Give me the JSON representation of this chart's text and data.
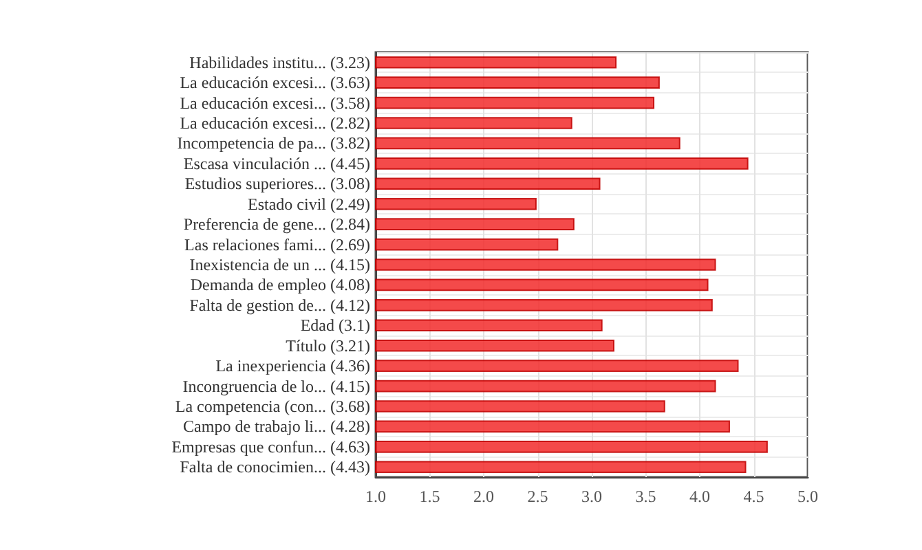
{
  "chart_data": {
    "type": "bar",
    "orientation": "horizontal",
    "categories": [
      "Habilidades institu... (3.23)",
      "La educación excesi... (3.63)",
      "La educación excesi... (3.58)",
      "La educación excesi... (2.82)",
      "Incompetencia de pa... (3.82)",
      "Escasa vinculación ... (4.45)",
      "Estudios superiores... (3.08)",
      "Estado civil (2.49)",
      "Preferencia de gene... (2.84)",
      "Las relaciones fami... (2.69)",
      "Inexistencia de un ... (4.15)",
      "Demanda de empleo (4.08)",
      "Falta de gestion de... (4.12)",
      "Edad (3.1)",
      "Título (3.21)",
      "La inexperiencia (4.36)",
      "Incongruencia de lo... (4.15)",
      "La competencia (con... (3.68)",
      "Campo de trabajo li... (4.28)",
      "Empresas que confun... (4.63)",
      "Falta de conocimien... (4.43)"
    ],
    "values": [
      3.23,
      3.63,
      3.58,
      2.82,
      3.82,
      4.45,
      3.08,
      2.49,
      2.84,
      2.69,
      4.15,
      4.08,
      4.12,
      3.1,
      3.21,
      4.36,
      4.15,
      3.68,
      4.28,
      4.63,
      4.43
    ],
    "color": "#f22a2a",
    "xlim": [
      1,
      5
    ],
    "xticks": [
      {
        "value": 1,
        "label": "1.0"
      },
      {
        "value": 1.5,
        "label": "1.5"
      },
      {
        "value": 2,
        "label": "2.0"
      },
      {
        "value": 2.5,
        "label": "2.5"
      },
      {
        "value": 3,
        "label": "3.0"
      },
      {
        "value": 3.5,
        "label": "3.5"
      },
      {
        "value": 4,
        "label": "4.0"
      },
      {
        "value": 4.5,
        "label": "4.5"
      },
      {
        "value": 5,
        "label": "5.0"
      }
    ],
    "grid": true
  }
}
